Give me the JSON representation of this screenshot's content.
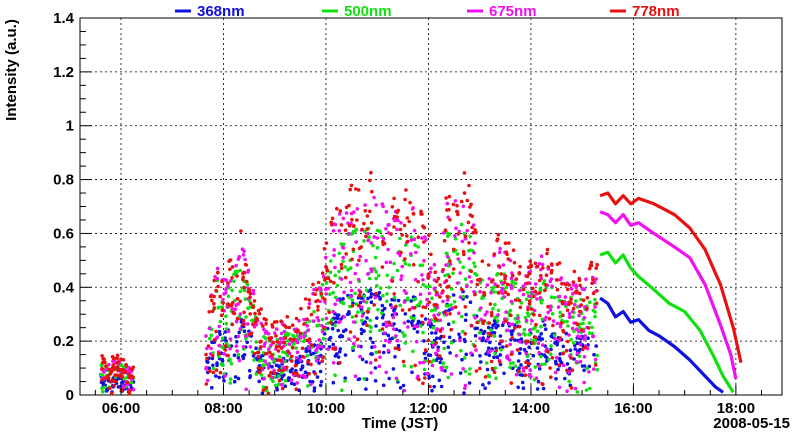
{
  "chart_data": {
    "type": "scatter",
    "xlabel": "Time (JST)",
    "ylabel": "Intensity (a.u.)",
    "date_label": "2008-05-15",
    "x_unit": "hour of day (JST)",
    "xlim": [
      5.2,
      18.9
    ],
    "ylim": [
      0,
      1.4
    ],
    "x_ticks": [
      {
        "value": 6,
        "label": "06:00"
      },
      {
        "value": 8,
        "label": "08:00"
      },
      {
        "value": 10,
        "label": "10:00"
      },
      {
        "value": 12,
        "label": "12:00"
      },
      {
        "value": 14,
        "label": "14:00"
      },
      {
        "value": 16,
        "label": "16:00"
      },
      {
        "value": 18,
        "label": "18:00"
      }
    ],
    "y_ticks": [
      {
        "value": 0,
        "label": "0"
      },
      {
        "value": 0.2,
        "label": "0.2"
      },
      {
        "value": 0.4,
        "label": "0.4"
      },
      {
        "value": 0.6,
        "label": "0.6"
      },
      {
        "value": 0.8,
        "label": "0.8"
      },
      {
        "value": 1.0,
        "label": "1"
      },
      {
        "value": 1.2,
        "label": "1.2"
      },
      {
        "value": 1.4,
        "label": "1.4"
      }
    ],
    "grid": true,
    "legend_position": "top",
    "series": [
      {
        "name": "368nm",
        "color": "#1010e0",
        "scatter_scale": 0.48,
        "curve": [
          [
            15.35,
            0.36
          ],
          [
            15.5,
            0.34
          ],
          [
            15.65,
            0.29
          ],
          [
            15.8,
            0.31
          ],
          [
            15.95,
            0.27
          ],
          [
            16.1,
            0.28
          ],
          [
            16.3,
            0.24
          ],
          [
            16.5,
            0.22
          ],
          [
            16.8,
            0.18
          ],
          [
            17.1,
            0.13
          ],
          [
            17.4,
            0.07
          ],
          [
            17.6,
            0.03
          ],
          [
            17.75,
            0.01
          ]
        ]
      },
      {
        "name": "500nm",
        "color": "#10e010",
        "scatter_scale": 0.78,
        "curve": [
          [
            15.35,
            0.52
          ],
          [
            15.5,
            0.53
          ],
          [
            15.65,
            0.49
          ],
          [
            15.8,
            0.52
          ],
          [
            15.95,
            0.47
          ],
          [
            16.1,
            0.44
          ],
          [
            16.35,
            0.4
          ],
          [
            16.7,
            0.34
          ],
          [
            17.0,
            0.31
          ],
          [
            17.3,
            0.24
          ],
          [
            17.55,
            0.15
          ],
          [
            17.75,
            0.07
          ],
          [
            17.95,
            0.01
          ]
        ]
      },
      {
        "name": "675nm",
        "color": "#f010f0",
        "scatter_scale": 0.92,
        "curve": [
          [
            15.35,
            0.68
          ],
          [
            15.5,
            0.67
          ],
          [
            15.65,
            0.64
          ],
          [
            15.8,
            0.67
          ],
          [
            15.95,
            0.63
          ],
          [
            16.1,
            0.64
          ],
          [
            16.4,
            0.6
          ],
          [
            16.8,
            0.55
          ],
          [
            17.1,
            0.51
          ],
          [
            17.4,
            0.41
          ],
          [
            17.7,
            0.26
          ],
          [
            17.9,
            0.15
          ],
          [
            18.0,
            0.06
          ]
        ]
      },
      {
        "name": "778nm",
        "color": "#e81010",
        "scatter_scale": 1.0,
        "curve": [
          [
            15.35,
            0.74
          ],
          [
            15.5,
            0.75
          ],
          [
            15.65,
            0.71
          ],
          [
            15.8,
            0.74
          ],
          [
            15.95,
            0.71
          ],
          [
            16.1,
            0.73
          ],
          [
            16.4,
            0.71
          ],
          [
            16.8,
            0.67
          ],
          [
            17.1,
            0.62
          ],
          [
            17.4,
            0.54
          ],
          [
            17.7,
            0.41
          ],
          [
            17.95,
            0.25
          ],
          [
            18.1,
            0.12
          ]
        ]
      }
    ],
    "scatter_envelope": [
      [
        5.6,
        0.15
      ],
      [
        5.75,
        0.14
      ],
      [
        6.0,
        0.15
      ],
      [
        6.2,
        0.1
      ],
      [
        7.7,
        0.27
      ],
      [
        7.85,
        0.58
      ],
      [
        8.0,
        0.47
      ],
      [
        8.2,
        0.58
      ],
      [
        8.35,
        0.62
      ],
      [
        8.5,
        0.52
      ],
      [
        8.65,
        0.36
      ],
      [
        8.9,
        0.26
      ],
      [
        9.2,
        0.3
      ],
      [
        9.45,
        0.3
      ],
      [
        9.7,
        0.4
      ],
      [
        9.85,
        0.46
      ],
      [
        10.0,
        0.58
      ],
      [
        10.15,
        0.7
      ],
      [
        10.3,
        0.76
      ],
      [
        10.5,
        0.78
      ],
      [
        10.7,
        0.8
      ],
      [
        10.9,
        0.83
      ],
      [
        11.05,
        0.8
      ],
      [
        11.2,
        0.74
      ],
      [
        11.45,
        0.76
      ],
      [
        11.7,
        0.77
      ],
      [
        11.9,
        0.68
      ],
      [
        12.05,
        0.6
      ],
      [
        12.2,
        0.45
      ],
      [
        12.35,
        0.78
      ],
      [
        12.55,
        0.81
      ],
      [
        12.75,
        0.83
      ],
      [
        12.9,
        0.7
      ],
      [
        13.1,
        0.5
      ],
      [
        13.35,
        0.6
      ],
      [
        13.6,
        0.56
      ],
      [
        13.85,
        0.52
      ],
      [
        14.05,
        0.49
      ],
      [
        14.25,
        0.58
      ],
      [
        14.45,
        0.52
      ],
      [
        14.7,
        0.48
      ],
      [
        14.95,
        0.45
      ],
      [
        15.2,
        0.52
      ],
      [
        15.3,
        0.5
      ]
    ]
  }
}
